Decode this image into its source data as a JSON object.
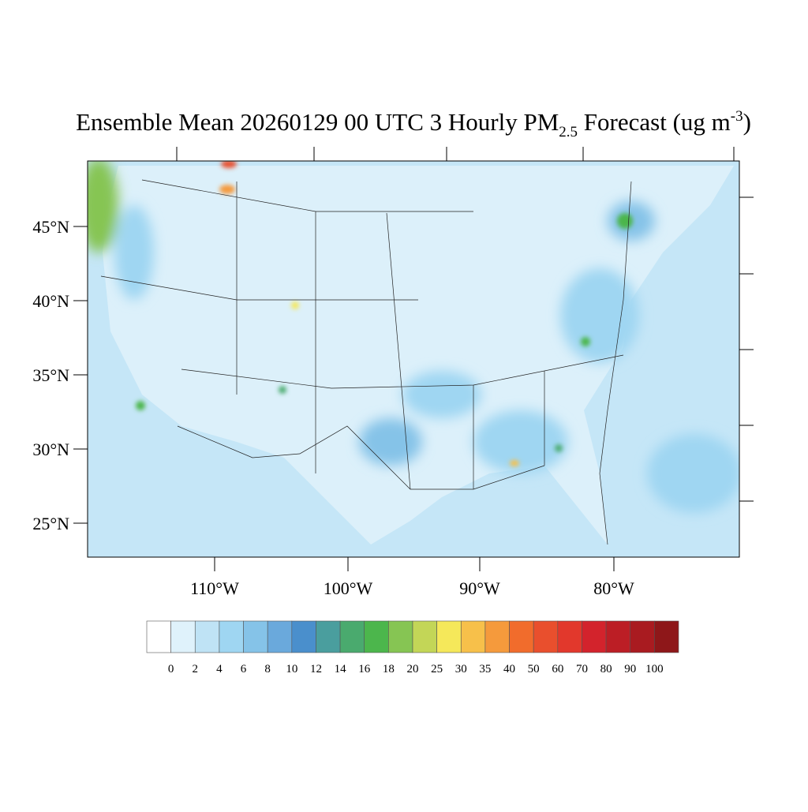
{
  "title": {
    "main": "Ensemble Mean 20260129 00 UTC 3 Hourly PM",
    "sub": "2.5",
    "rest": " Forecast (ug m",
    "sup": "-3",
    "end": ")"
  },
  "lat_labels": [
    "45°N",
    "40°N",
    "35°N",
    "30°N",
    "25°N"
  ],
  "lon_labels": [
    "110°W",
    "100°W",
    "90°W",
    "80°W"
  ],
  "colorbar": {
    "levels": [
      0,
      2,
      4,
      6,
      8,
      10,
      12,
      14,
      16,
      18,
      20,
      25,
      30,
      35,
      40,
      50,
      60,
      70,
      80,
      90,
      100
    ],
    "colors": [
      "#ffffff",
      "#dff2fb",
      "#bfe3f5",
      "#9fd6f2",
      "#85c3e8",
      "#6aa9dc",
      "#4a8fcc",
      "#4a9e9e",
      "#4aaa6e",
      "#4cb64c",
      "#86c553",
      "#c3d657",
      "#f5e85a",
      "#f7c04a",
      "#f59a3c",
      "#f16c2c",
      "#e94f2d",
      "#e2382c",
      "#d3232c",
      "#bc1e25",
      "#a91b20",
      "#8e1719"
    ]
  }
}
